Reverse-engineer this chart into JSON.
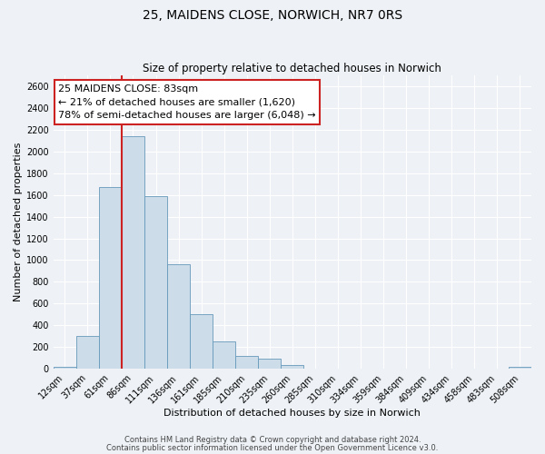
{
  "title": "25, MAIDENS CLOSE, NORWICH, NR7 0RS",
  "subtitle": "Size of property relative to detached houses in Norwich",
  "xlabel": "Distribution of detached houses by size in Norwich",
  "ylabel": "Number of detached properties",
  "bar_labels": [
    "12sqm",
    "37sqm",
    "61sqm",
    "86sqm",
    "111sqm",
    "136sqm",
    "161sqm",
    "185sqm",
    "210sqm",
    "235sqm",
    "260sqm",
    "285sqm",
    "310sqm",
    "334sqm",
    "359sqm",
    "384sqm",
    "409sqm",
    "434sqm",
    "458sqm",
    "483sqm",
    "508sqm"
  ],
  "bar_values": [
    20,
    300,
    1670,
    2140,
    1590,
    960,
    505,
    255,
    120,
    95,
    30,
    0,
    0,
    0,
    0,
    0,
    0,
    0,
    0,
    0,
    20
  ],
  "bar_color": "#ccdce8",
  "bar_edge_color": "#6699bb",
  "vline_color": "#cc2222",
  "vline_x_index": 3,
  "annotation_title": "25 MAIDENS CLOSE: 83sqm",
  "annotation_line1": "← 21% of detached houses are smaller (1,620)",
  "annotation_line2": "78% of semi-detached houses are larger (6,048) →",
  "annotation_box_color": "#ffffff",
  "annotation_box_edge": "#cc2222",
  "ylim": [
    0,
    2700
  ],
  "yticks": [
    0,
    200,
    400,
    600,
    800,
    1000,
    1200,
    1400,
    1600,
    1800,
    2000,
    2200,
    2400,
    2600
  ],
  "footer1": "Contains HM Land Registry data © Crown copyright and database right 2024.",
  "footer2": "Contains public sector information licensed under the Open Government Licence v3.0.",
  "background_color": "#eef2f6",
  "grid_color": "#ffffff",
  "title_fontsize": 10,
  "subtitle_fontsize": 8.5,
  "axis_label_fontsize": 8,
  "tick_fontsize": 7,
  "annotation_fontsize": 8,
  "footer_fontsize": 6
}
